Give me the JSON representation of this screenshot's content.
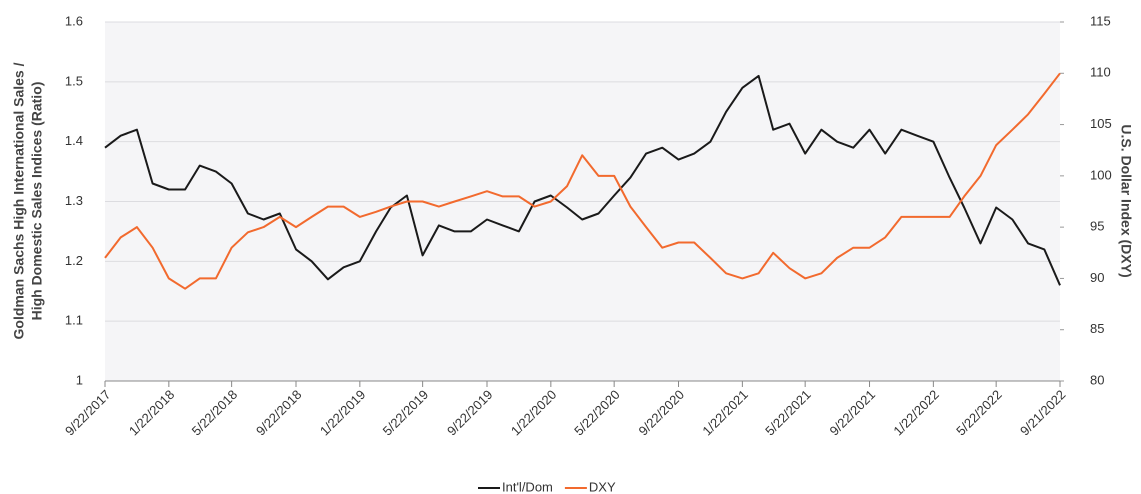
{
  "chart_data": {
    "type": "line",
    "ylabel": [
      "Goldman Sachs High International Sales /",
      "High Domestic Sales Indices (Ratio)"
    ],
    "y2label": "U.S. Dollar Index (DXY)",
    "x": [
      "9/22/2017",
      "10/22/2017",
      "11/22/2017",
      "12/22/2017",
      "1/22/2018",
      "2/22/2018",
      "3/22/2018",
      "4/22/2018",
      "5/22/2018",
      "6/22/2018",
      "7/22/2018",
      "8/22/2018",
      "9/22/2018",
      "10/22/2018",
      "11/22/2018",
      "12/22/2018",
      "1/22/2019",
      "2/22/2019",
      "3/22/2019",
      "4/22/2019",
      "5/22/2019",
      "6/22/2019",
      "7/22/2019",
      "8/22/2019",
      "9/22/2019",
      "10/22/2019",
      "11/22/2019",
      "12/22/2019",
      "1/22/2020",
      "2/22/2020",
      "3/22/2020",
      "4/22/2020",
      "5/22/2020",
      "6/22/2020",
      "7/22/2020",
      "8/22/2020",
      "9/22/2020",
      "10/22/2020",
      "11/22/2020",
      "12/22/2020",
      "1/22/2021",
      "2/22/2021",
      "3/22/2021",
      "4/22/2021",
      "5/22/2021",
      "6/22/2021",
      "7/22/2021",
      "8/22/2021",
      "9/22/2021",
      "10/22/2021",
      "11/22/2021",
      "12/22/2021",
      "1/22/2022",
      "2/22/2022",
      "3/22/2022",
      "4/22/2022",
      "5/22/2022",
      "6/22/2022",
      "7/22/2022",
      "8/22/2022",
      "9/21/2022"
    ],
    "xlim": [
      "9/22/2017",
      "9/21/2022"
    ],
    "xticks": [
      "9/22/2017",
      "1/22/2018",
      "5/22/2018",
      "9/22/2018",
      "1/22/2019",
      "5/22/2019",
      "9/22/2019",
      "1/22/2020",
      "5/22/2020",
      "9/22/2020",
      "1/22/2021",
      "5/22/2021",
      "9/22/2021",
      "1/22/2022",
      "5/22/2022",
      "9/21/2022"
    ],
    "ylim": [
      1,
      1.6
    ],
    "yticks": [
      1,
      1.1,
      1.2,
      1.3,
      1.4,
      1.5,
      1.6
    ],
    "y2lim": [
      80,
      115
    ],
    "y2ticks": [
      80,
      85,
      90,
      95,
      100,
      105,
      110,
      115
    ],
    "grid": true,
    "legend": "bottom",
    "series": [
      {
        "name": "Int'l/Dom",
        "color": "#1a1a1a",
        "values": [
          1.39,
          1.41,
          1.42,
          1.33,
          1.32,
          1.32,
          1.36,
          1.35,
          1.33,
          1.28,
          1.27,
          1.28,
          1.22,
          1.2,
          1.17,
          1.19,
          1.2,
          1.25,
          1.29,
          1.31,
          1.21,
          1.26,
          1.25,
          1.25,
          1.27,
          1.26,
          1.25,
          1.3,
          1.31,
          1.29,
          1.27,
          1.28,
          1.31,
          1.34,
          1.38,
          1.39,
          1.37,
          1.38,
          1.4,
          1.45,
          1.49,
          1.51,
          1.42,
          1.43,
          1.38,
          1.42,
          1.4,
          1.39,
          1.42,
          1.38,
          1.42,
          1.41,
          1.4,
          1.34,
          1.29,
          1.23,
          1.29,
          1.27,
          1.23,
          1.22,
          1.16
        ]
      },
      {
        "name": "DXY",
        "color": "#f26a2e",
        "axis": "y2",
        "values": [
          92,
          94,
          95,
          93,
          90,
          89,
          90,
          90,
          93,
          94.5,
          95,
          96,
          95,
          96,
          97,
          97,
          96,
          96.5,
          97,
          97.5,
          97.5,
          97,
          97.5,
          98,
          98.5,
          98,
          98,
          97,
          97.5,
          99,
          102,
          100,
          100,
          97,
          95,
          93,
          93.5,
          93.5,
          92,
          90.5,
          90,
          90.5,
          92.5,
          91,
          90,
          90.5,
          92,
          93,
          93,
          94,
          96,
          96,
          96,
          96,
          98,
          100,
          103,
          104.5,
          106,
          108,
          110
        ]
      }
    ]
  }
}
